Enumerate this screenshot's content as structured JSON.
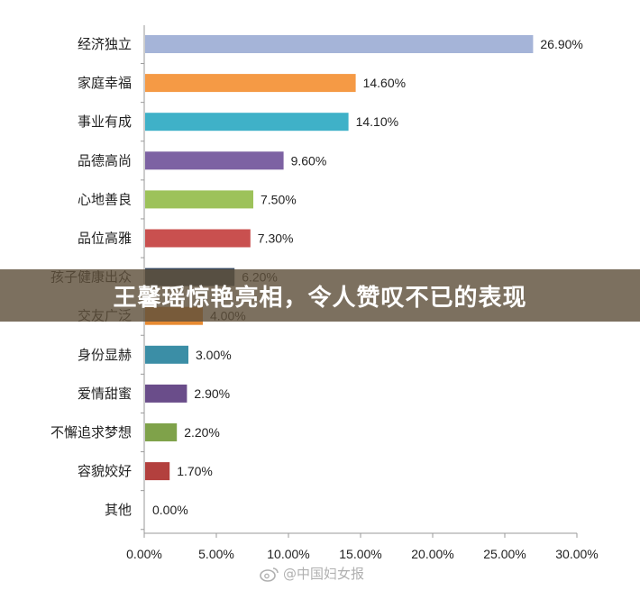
{
  "chart_data": {
    "type": "bar",
    "orientation": "horizontal",
    "categories": [
      "经济独立",
      "家庭幸福",
      "事业有成",
      "品德高尚",
      "心地善良",
      "品位高雅",
      "孩子健康出众",
      "交友广泛",
      "身份显赫",
      "爱情甜蜜",
      "不懈追求梦想",
      "容貌姣好",
      "其他"
    ],
    "values": [
      26.9,
      14.6,
      14.1,
      9.6,
      7.5,
      7.3,
      6.2,
      4.0,
      3.0,
      2.9,
      2.2,
      1.7,
      0.0
    ],
    "value_labels": [
      "26.90%",
      "14.60%",
      "14.10%",
      "9.60%",
      "7.50%",
      "7.30%",
      "6.20%",
      "4.00%",
      "3.00%",
      "2.90%",
      "2.20%",
      "1.70%",
      "0.00%"
    ],
    "colors": [
      "#a5b4d8",
      "#f59a45",
      "#3fb1c8",
      "#7d62a3",
      "#9dc25a",
      "#c9504f",
      "#36485f",
      "#e88b32",
      "#3b8ea6",
      "#6a4d8a",
      "#7fa24a",
      "#b3403e",
      "#888888"
    ],
    "xlim": [
      0,
      30
    ],
    "x_ticks": [
      "0.00%",
      "5.00%",
      "10.00%",
      "15.00%",
      "20.00%",
      "25.00%",
      "30.00%"
    ],
    "grid": false,
    "legend": "none"
  },
  "overlay": {
    "title": "王馨瑶惊艳亮相，令人赞叹不已的表现"
  },
  "watermark": {
    "icon": "weibo-icon",
    "text": "@中国妇女报"
  }
}
